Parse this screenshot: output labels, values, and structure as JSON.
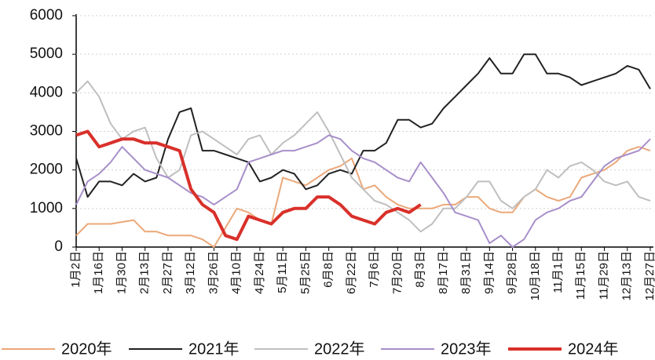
{
  "chart_data": {
    "type": "line",
    "categories": [
      "1月2日",
      null,
      "1月16日",
      null,
      "1月30日",
      null,
      "2月13日",
      null,
      "2月27日",
      null,
      "3月12日",
      null,
      "3月26日",
      null,
      "4月10日",
      null,
      "4月24日",
      null,
      "5月11日",
      null,
      "5月25日",
      null,
      "6月8日",
      null,
      "6月22日",
      null,
      "7月6日",
      null,
      "7月20日",
      null,
      "8月3日",
      null,
      "8月17日",
      null,
      "8月31日",
      null,
      "9月14日",
      null,
      "9月28日",
      null,
      "10月18日",
      null,
      "11月1日",
      null,
      "11月15日",
      null,
      "11月29日",
      null,
      "12月13日",
      null,
      "12月27日"
    ],
    "series": [
      {
        "name": "2020年",
        "color": "#eba879",
        "values": [
          300,
          600,
          600,
          600,
          650,
          700,
          400,
          400,
          300,
          300,
          300,
          200,
          0,
          500,
          1000,
          900,
          700,
          600,
          1800,
          1700,
          1600,
          1800,
          2000,
          2100,
          2300,
          1500,
          1600,
          1300,
          1100,
          1000,
          1000,
          1000,
          1100,
          1100,
          1300,
          1300,
          1000,
          900,
          900,
          1300,
          1500,
          1300,
          1200,
          1300,
          1800,
          1900,
          2000,
          2200,
          2500,
          2600,
          2500
        ]
      },
      {
        "name": "2021年",
        "color": "#222222",
        "values": [
          2300,
          1300,
          1700,
          1700,
          1600,
          1900,
          1700,
          1800,
          2800,
          3500,
          3600,
          2500,
          2500,
          2400,
          2300,
          2200,
          1700,
          1800,
          2000,
          1900,
          1500,
          1600,
          1900,
          2000,
          1900,
          2500,
          2500,
          2700,
          3300,
          3300,
          3100,
          3200,
          3600,
          3900,
          4200,
          4500,
          4900,
          4500,
          4500,
          5000,
          5000,
          4500,
          4500,
          4400,
          4200,
          4300,
          4400,
          4500,
          4700,
          4600,
          4100
        ]
      },
      {
        "name": "2022年",
        "color": "#bfbfbf",
        "values": [
          4000,
          4300,
          3900,
          3200,
          2800,
          3000,
          3100,
          2300,
          1800,
          2000,
          2900,
          3000,
          2800,
          2600,
          2400,
          2800,
          2900,
          2400,
          2700,
          2900,
          3200,
          3500,
          3000,
          2400,
          1800,
          1500,
          1200,
          1100,
          900,
          700,
          400,
          600,
          1000,
          1000,
          1300,
          1700,
          1700,
          1200,
          1000,
          1300,
          1500,
          2000,
          1800,
          2100,
          2200,
          2000,
          1700,
          1600,
          1700,
          1300,
          1200
        ]
      },
      {
        "name": "2023年",
        "color": "#a78fca",
        "values": [
          1100,
          1700,
          1900,
          2200,
          2600,
          2300,
          2000,
          1900,
          1800,
          1600,
          1400,
          1300,
          1100,
          1300,
          1500,
          2200,
          2300,
          2400,
          2500,
          2500,
          2600,
          2700,
          2900,
          2800,
          2500,
          2300,
          2200,
          2000,
          1800,
          1700,
          2200,
          1800,
          1400,
          900,
          800,
          700,
          100,
          300,
          0,
          200,
          700,
          900,
          1000,
          1200,
          1300,
          1700,
          2100,
          2300,
          2400,
          2500,
          2800
        ]
      },
      {
        "name": "2024年",
        "color": "#d9302a",
        "values": [
          2900,
          3000,
          2600,
          2700,
          2800,
          2800,
          2700,
          2700,
          2600,
          2500,
          1500,
          1100,
          900,
          300,
          200,
          800,
          700,
          600,
          900,
          1000,
          1000,
          1300,
          1300,
          1100,
          800,
          700,
          600,
          900,
          1000,
          900,
          1100,
          null,
          null,
          null,
          null,
          null,
          null,
          null,
          null,
          null,
          null,
          null,
          null,
          null,
          null,
          null,
          null,
          null,
          null,
          null,
          null
        ]
      }
    ],
    "ylim": [
      0,
      6000
    ],
    "yticks": [
      0,
      1000,
      2000,
      3000,
      4000,
      5000,
      6000
    ],
    "grid": true
  }
}
